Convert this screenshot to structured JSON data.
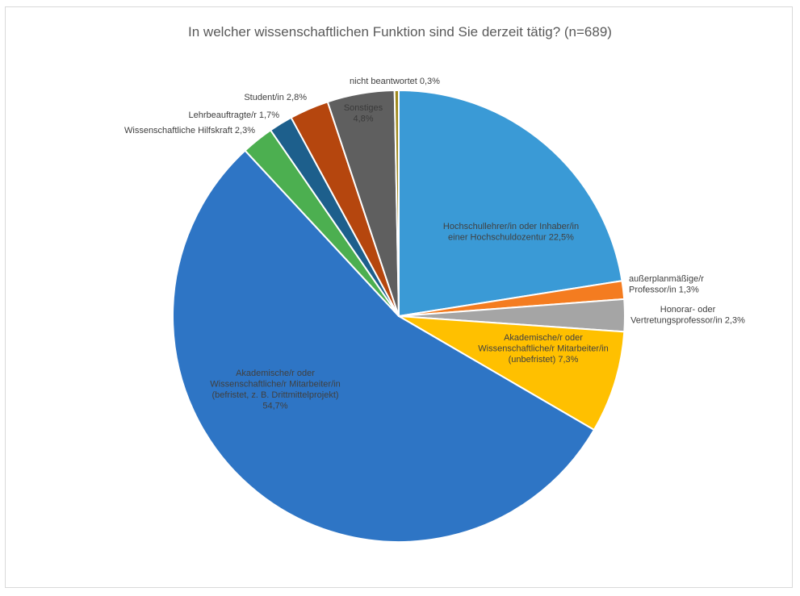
{
  "chart_data": {
    "type": "pie",
    "title": "In welcher wissenschaftlichen Funktion sind Sie derzeit tätig? (n=689)",
    "slices": [
      {
        "label_lines": [
          "Hochschullehrer/in oder Inhaber/in",
          "einer Hochschuldozentur 22,5%"
        ],
        "value": 22.5,
        "color": "#3a9ad6"
      },
      {
        "label_lines": [
          "außerplanmäßige/r",
          "Professor/in 1,3%"
        ],
        "value": 1.3,
        "color": "#f47c20"
      },
      {
        "label_lines": [
          "Honorar- oder",
          "Vertretungsprofessor/in 2,3%"
        ],
        "value": 2.3,
        "color": "#a5a5a5"
      },
      {
        "label_lines": [
          "Akademische/r oder",
          "Wissenschaftliche/r Mitarbeiter/in",
          "(unbefristet) 7,3%"
        ],
        "value": 7.3,
        "color": "#ffc000"
      },
      {
        "label_lines": [
          "Akademische/r oder",
          "Wissenschaftliche/r Mitarbeiter/in",
          "(befristet, z. B. Drittmittelprojekt)",
          "54,7%"
        ],
        "value": 54.7,
        "color": "#2e75c5"
      },
      {
        "label_lines": [
          "Wissenschaftliche Hilfskraft 2,3%"
        ],
        "value": 2.3,
        "color": "#4caf50"
      },
      {
        "label_lines": [
          "Lehrbeauftragte/r 1,7%"
        ],
        "value": 1.7,
        "color": "#1d5f8c"
      },
      {
        "label_lines": [
          "Student/in 2,8%"
        ],
        "value": 2.8,
        "color": "#b5460e"
      },
      {
        "label_lines": [
          "Sonstiges",
          "4,8%"
        ],
        "value": 4.8,
        "color": "#5f5f5f"
      },
      {
        "label_lines": [
          "nicht beantwortet 0,3%"
        ],
        "value": 0.3,
        "color": "#a08a1e"
      }
    ]
  }
}
